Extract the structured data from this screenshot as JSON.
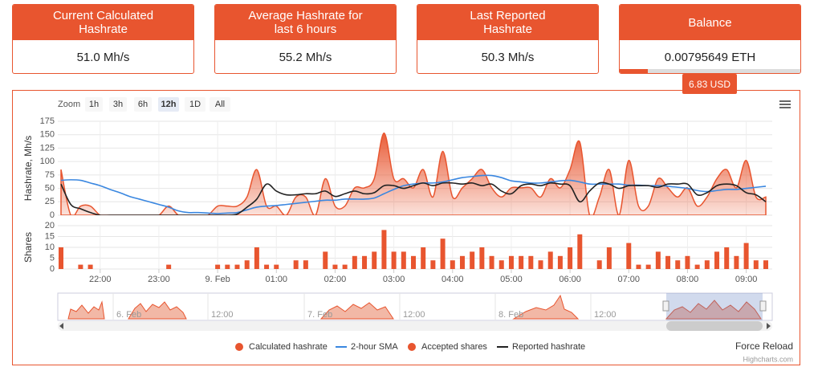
{
  "cards": [
    {
      "title": "Current Calculated Hashrate",
      "value": "51.0 Mh/s"
    },
    {
      "title": "Average Hashrate for last 6 hours",
      "value": "55.2 Mh/s"
    },
    {
      "title": "Last Reported Hashrate",
      "value": "50.3 Mh/s"
    },
    {
      "title": "Balance",
      "value": "0.00795649 ETH",
      "tooltip": "6.83 USD"
    }
  ],
  "zoom": {
    "label": "Zoom",
    "buttons": [
      "1h",
      "3h",
      "6h",
      "12h",
      "1D",
      "All"
    ],
    "active": 3
  },
  "chart_data": [
    {
      "type": "area-line",
      "ylabel": "Hashrate, Mh/s",
      "ylim": [
        0,
        175
      ],
      "yticks": [
        0,
        25,
        50,
        75,
        100,
        125,
        150,
        175
      ],
      "grid": true,
      "series": [
        {
          "name": "Calculated hashrate",
          "color": "#e8552f",
          "kind": "area",
          "values": [
            85,
            0,
            17,
            17,
            0,
            0,
            0,
            0,
            0,
            0,
            0,
            17,
            0,
            0,
            0,
            0,
            17,
            17,
            17,
            34,
            85,
            17,
            17,
            0,
            34,
            34,
            0,
            68,
            17,
            17,
            51,
            51,
            68,
            153,
            68,
            68,
            51,
            85,
            34,
            119,
            34,
            51,
            68,
            85,
            51,
            34,
            51,
            51,
            51,
            34,
            68,
            51,
            85,
            136,
            0,
            34,
            85,
            0,
            102,
            17,
            17,
            68,
            51,
            34,
            51,
            17,
            34,
            68,
            85,
            51,
            102,
            34,
            34
          ]
        },
        {
          "name": "2-hour SMA",
          "color": "#3a87e0",
          "kind": "line",
          "values": [
            65,
            66,
            65,
            60,
            55,
            48,
            42,
            35,
            30,
            25,
            20,
            15,
            8,
            5,
            5,
            4,
            3,
            4,
            5,
            10,
            15,
            17,
            18,
            20,
            22,
            24,
            26,
            28,
            28,
            30,
            30,
            30,
            32,
            40,
            48,
            55,
            58,
            60,
            60,
            62,
            66,
            70,
            72,
            74,
            74,
            70,
            64,
            62,
            60,
            60,
            62,
            64,
            65,
            62,
            58,
            58,
            58,
            58,
            56,
            56,
            55,
            55,
            54,
            52,
            50,
            46,
            44,
            46,
            48,
            48,
            50,
            52,
            54
          ]
        },
        {
          "name": "Reported hashrate",
          "color": "#222222",
          "kind": "line",
          "values": [
            58,
            20,
            12,
            5,
            0,
            0,
            0,
            0,
            0,
            0,
            0,
            0,
            0,
            0,
            0,
            0,
            0,
            0,
            2,
            15,
            30,
            58,
            45,
            38,
            38,
            40,
            40,
            45,
            35,
            40,
            45,
            40,
            42,
            55,
            55,
            50,
            55,
            60,
            55,
            60,
            60,
            58,
            60,
            55,
            58,
            45,
            40,
            55,
            58,
            55,
            60,
            58,
            55,
            25,
            45,
            60,
            58,
            50,
            55,
            55,
            55,
            52,
            58,
            58,
            58,
            38,
            42,
            55,
            58,
            55,
            42,
            38,
            25
          ]
        }
      ]
    },
    {
      "type": "bar",
      "ylabel": "Shares",
      "ylim": [
        0,
        20
      ],
      "yticks": [
        0,
        5,
        10,
        15,
        20
      ],
      "grid": true,
      "categories": [
        null,
        null,
        null,
        null,
        "22:00",
        null,
        null,
        null,
        null,
        null,
        "23:00",
        null,
        null,
        null,
        null,
        null,
        "9. Feb",
        null,
        null,
        null,
        null,
        null,
        "01:00",
        null,
        null,
        null,
        null,
        null,
        "02:00",
        null,
        null,
        null,
        null,
        null,
        "03:00",
        null,
        null,
        null,
        null,
        null,
        "04:00",
        null,
        null,
        null,
        null,
        null,
        "05:00",
        null,
        null,
        null,
        null,
        null,
        "06:00",
        null,
        null,
        null,
        null,
        null,
        "07:00",
        null,
        null,
        null,
        null,
        null,
        "08:00",
        null,
        null,
        null,
        null,
        null,
        "09:00",
        null,
        null
      ],
      "series": [
        {
          "name": "Accepted shares",
          "color": "#e8552f",
          "values": [
            10,
            0,
            2,
            2,
            0,
            0,
            0,
            0,
            0,
            0,
            0,
            2,
            0,
            0,
            0,
            0,
            2,
            2,
            2,
            4,
            10,
            2,
            2,
            0,
            4,
            4,
            0,
            8,
            2,
            2,
            6,
            6,
            8,
            18,
            8,
            8,
            6,
            10,
            4,
            14,
            4,
            6,
            8,
            10,
            6,
            4,
            6,
            6,
            6,
            4,
            8,
            6,
            10,
            16,
            0,
            4,
            10,
            0,
            12,
            2,
            2,
            8,
            6,
            4,
            6,
            2,
            4,
            8,
            10,
            6,
            12,
            4,
            4
          ]
        }
      ]
    }
  ],
  "navigator": {
    "labels": [
      "6. Feb",
      "12:00",
      "7. Feb",
      "12:00",
      "8. Feb",
      "12:00"
    ]
  },
  "force_reload": "Force Reload",
  "credits": "Highcharts.com"
}
